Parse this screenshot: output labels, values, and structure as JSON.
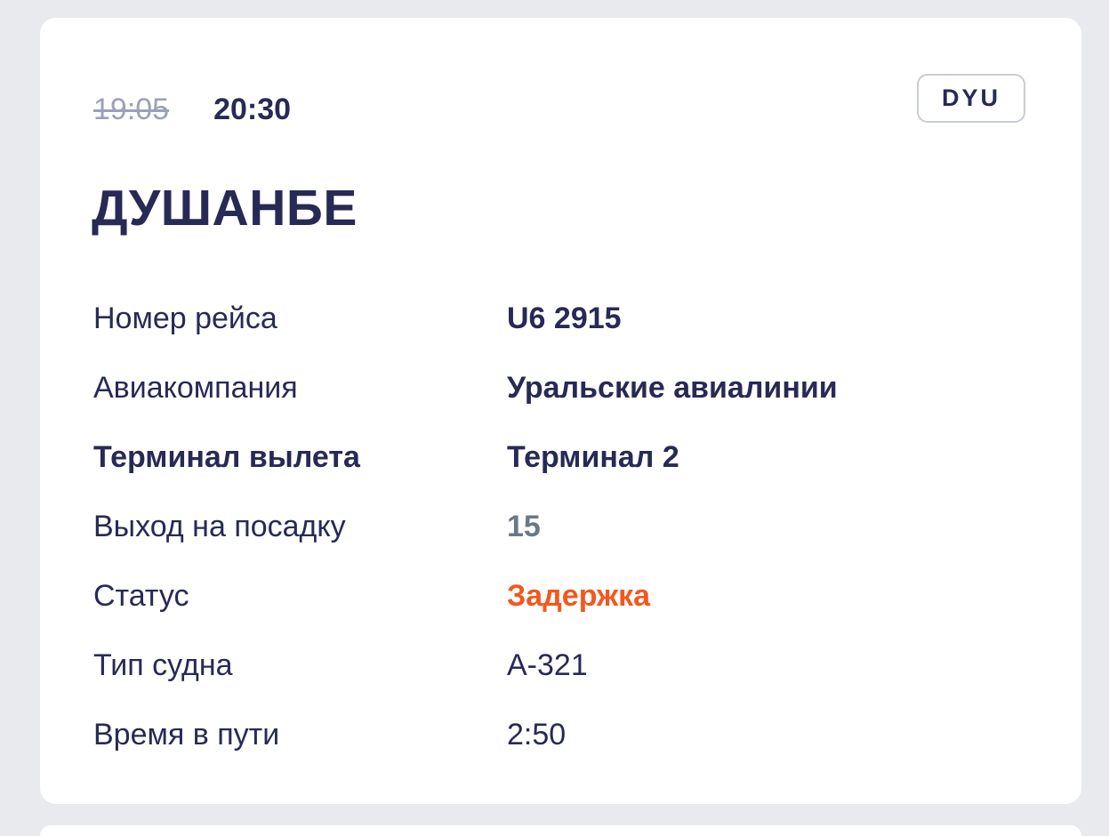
{
  "colors": {
    "page_background": "#e9eaee",
    "card_background": "#ffffff",
    "navy_text": "#272a55",
    "muted_strikethrough_gray": "#9aa3b4",
    "gate_value_gray": "#6b7886",
    "status_orange": "#f4571d",
    "badge_border_gray": "#c9cdd6"
  },
  "card": {
    "scheduled_time": "19:05",
    "actual_time": "20:30",
    "airport_code": "DYU",
    "destination": "ДУШАНБЕ",
    "rows": [
      {
        "label": "Номер рейса",
        "value": "U6 2915",
        "label_style": "regular",
        "value_style": "bold-navy"
      },
      {
        "label": "Авиакомпания",
        "value": "Уральские авиалинии",
        "label_style": "regular",
        "value_style": "bold-navy"
      },
      {
        "label": "Терминал вылета",
        "value": "Терминал 2",
        "label_style": "bold",
        "value_style": "bold-navy"
      },
      {
        "label": "Выход на посадку",
        "value": "15",
        "label_style": "regular",
        "value_style": "bold-gray"
      },
      {
        "label": "Статус",
        "value": "Задержка",
        "label_style": "regular",
        "value_style": "bold-orange"
      },
      {
        "label": "Тип судна",
        "value": "А-321",
        "label_style": "regular",
        "value_style": "regular"
      },
      {
        "label": "Время в пути",
        "value": "2:50",
        "label_style": "regular",
        "value_style": "regular"
      }
    ]
  }
}
